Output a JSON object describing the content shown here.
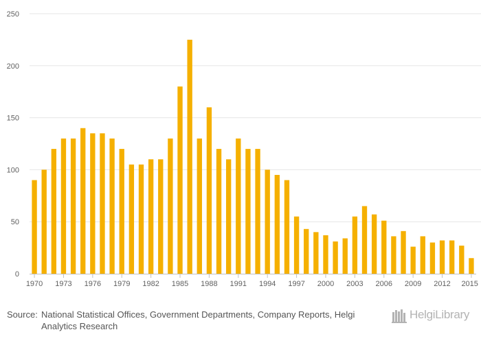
{
  "chart_data": {
    "type": "bar",
    "title": "",
    "xlabel": "",
    "ylabel": "",
    "ylim": [
      0,
      250
    ],
    "yticks": [
      0,
      50,
      100,
      150,
      200,
      250
    ],
    "color": "#F5B000",
    "categories": [
      1970,
      1971,
      1972,
      1973,
      1974,
      1975,
      1976,
      1977,
      1978,
      1979,
      1980,
      1981,
      1982,
      1983,
      1984,
      1985,
      1986,
      1987,
      1988,
      1989,
      1990,
      1991,
      1992,
      1993,
      1994,
      1995,
      1996,
      1997,
      1998,
      1999,
      2000,
      2001,
      2002,
      2003,
      2004,
      2005,
      2006,
      2007,
      2008,
      2009,
      2010,
      2011,
      2012,
      2013,
      2014,
      2015
    ],
    "values": [
      90,
      100,
      120,
      130,
      130,
      140,
      135,
      135,
      130,
      120,
      105,
      105,
      110,
      110,
      130,
      180,
      225,
      130,
      160,
      120,
      110,
      130,
      120,
      120,
      100,
      95,
      90,
      55,
      43,
      40,
      37,
      31,
      34,
      55,
      65,
      57,
      51,
      36,
      41,
      26,
      36,
      30,
      32,
      32,
      27,
      15
    ],
    "xtick_labels": [
      "1970",
      "1973",
      "1976",
      "1979",
      "1982",
      "1985",
      "1988",
      "1991",
      "1994",
      "1997",
      "2000",
      "2003",
      "2006",
      "2009",
      "2012",
      "2015"
    ]
  },
  "footer": {
    "source_prefix": "Source:",
    "source_text": "National Statistical Offices, Government Departments, Company Reports, Helgi Analytics Research"
  },
  "brand": {
    "name": "HelgiLibrary",
    "icon": "library-books-icon"
  }
}
